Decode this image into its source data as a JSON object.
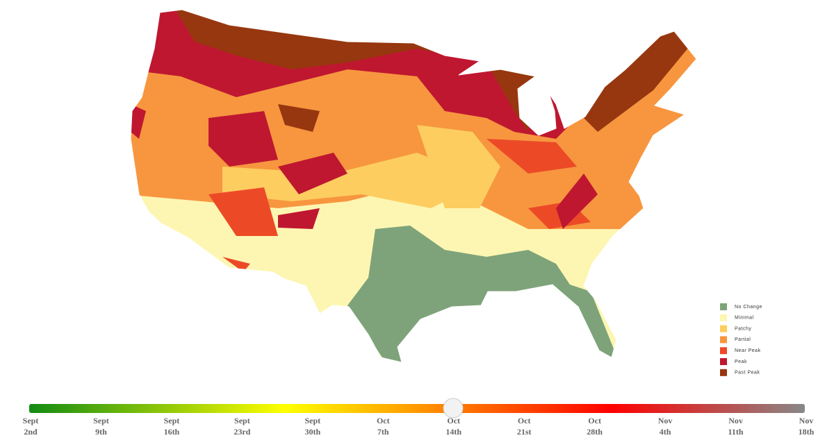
{
  "legend": {
    "items": [
      {
        "label": "No Change",
        "color": "#7ea37a"
      },
      {
        "label": "Minimal",
        "color": "#fdf6b2"
      },
      {
        "label": "Patchy",
        "color": "#fdcd5f"
      },
      {
        "label": "Partial",
        "color": "#f7963f"
      },
      {
        "label": "Near Peak",
        "color": "#ec4a27"
      },
      {
        "label": "Peak",
        "color": "#bf1730"
      },
      {
        "label": "Past Peak",
        "color": "#97370f"
      }
    ]
  },
  "slider": {
    "labels": [
      {
        "month": "Sept",
        "day": "2nd"
      },
      {
        "month": "Sept",
        "day": "9th"
      },
      {
        "month": "Sept",
        "day": "16th"
      },
      {
        "month": "Sept",
        "day": "23rd"
      },
      {
        "month": "Sept",
        "day": "30th"
      },
      {
        "month": "Oct",
        "day": "7th"
      },
      {
        "month": "Oct",
        "day": "14th"
      },
      {
        "month": "Oct",
        "day": "21st"
      },
      {
        "month": "Oct",
        "day": "28th"
      },
      {
        "month": "Nov",
        "day": "4th"
      },
      {
        "month": "Nov",
        "day": "11th"
      },
      {
        "month": "Nov",
        "day": "18th"
      }
    ]
  }
}
